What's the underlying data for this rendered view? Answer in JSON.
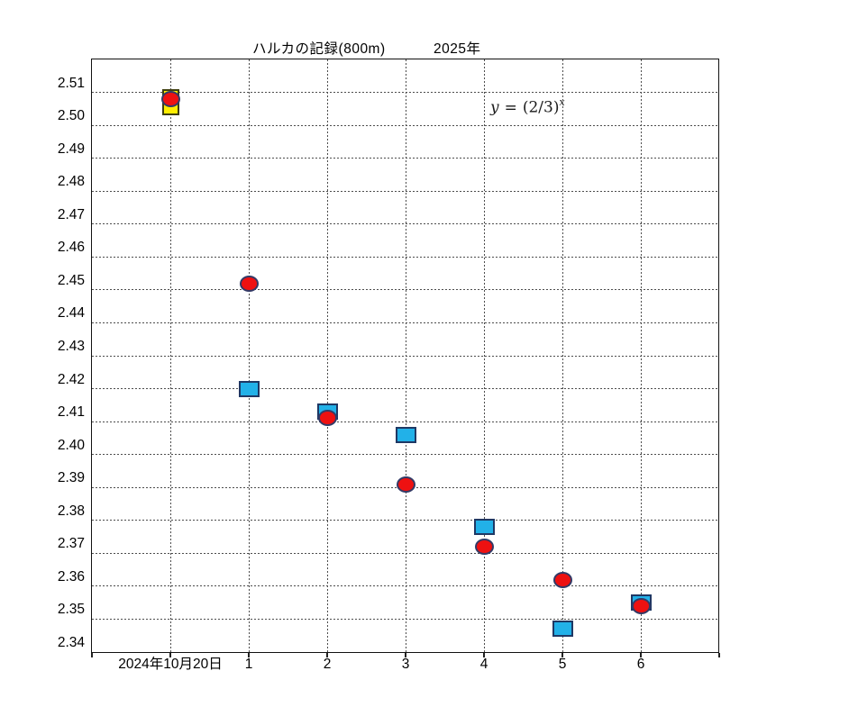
{
  "chart_data": {
    "type": "scatter",
    "title": "ハルカの記録(800m)",
    "year_label": "2025年",
    "annotation": {
      "var": "y",
      "rel": "=",
      "base": "(2/3)",
      "exp": "x"
    },
    "x_tick_labels": [
      "2024年10月20日",
      "1",
      "2",
      "3",
      "4",
      "5",
      "6"
    ],
    "y_tick_labels": [
      "2.51",
      "2.50",
      "2.49",
      "2.48",
      "2.47",
      "2.46",
      "2.45",
      "2.44",
      "2.43",
      "2.42",
      "2.41",
      "2.40",
      "2.39",
      "2.38",
      "2.37",
      "2.36",
      "2.35",
      "2.34"
    ],
    "ylim": [
      2.34,
      2.52
    ],
    "y_major_step": 0.01,
    "grid": true,
    "legend": "none",
    "series": [
      {
        "name": "red-circle-records",
        "marker": "circle",
        "fill": "#ee1111",
        "stroke": "#333a66",
        "x": [
          0,
          1,
          2,
          3,
          4,
          5,
          6
        ],
        "values": [
          2.508,
          2.452,
          2.411,
          2.391,
          2.372,
          2.362,
          2.354
        ]
      },
      {
        "name": "cyan-square-records",
        "marker": "square",
        "fill": "#22b1e8",
        "stroke": "#1f3864",
        "x": [
          1,
          2,
          3,
          4,
          5,
          6
        ],
        "values": [
          2.42,
          2.413,
          2.406,
          2.378,
          2.347,
          2.355
        ]
      },
      {
        "name": "yellow-start-highlight",
        "marker": "square-tall",
        "fill": "#ffee00",
        "stroke": "#3f3f10",
        "x": [
          0
        ],
        "values": [
          2.507
        ]
      }
    ]
  }
}
